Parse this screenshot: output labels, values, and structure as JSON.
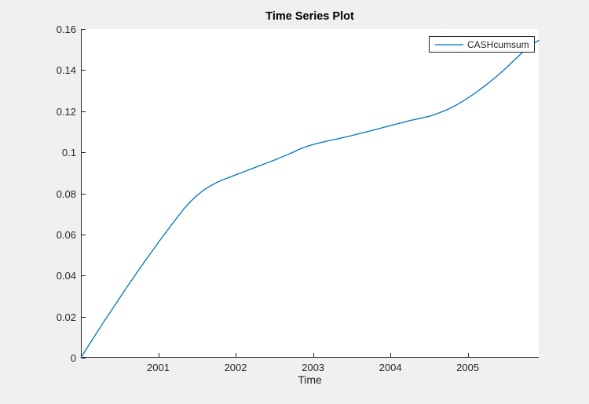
{
  "figure": {
    "background": "#f0f0f0"
  },
  "chart": {
    "title": "Time Series Plot",
    "xlabel": "Time",
    "legend": {
      "label": "CASHcumsum"
    },
    "colors": {
      "line": "#0072BD",
      "axis": "#262626",
      "plot_bg": "#ffffff",
      "figure_bg": "#f0f0f0",
      "title": "#000000"
    }
  },
  "chart_data": {
    "type": "line",
    "title": "Time Series Plot",
    "xlabel": "Time",
    "ylabel": "",
    "legend": [
      "CASHcumsum"
    ],
    "legend_position": "top-right",
    "grid": false,
    "box": false,
    "tick_direction": "in",
    "xlim": [
      2000,
      2005.917
    ],
    "ylim": [
      0,
      0.16
    ],
    "x_ticks": [
      2001,
      2002,
      2003,
      2004,
      2005
    ],
    "x_tick_labels": [
      "2001",
      "2002",
      "2003",
      "2004",
      "2005"
    ],
    "y_ticks": [
      0,
      0.02,
      0.04,
      0.06,
      0.08,
      0.1,
      0.12,
      0.14,
      0.16
    ],
    "y_tick_labels": [
      "0",
      "0.02",
      "0.04",
      "0.06",
      "0.08",
      "0.1",
      "0.12",
      "0.14",
      "0.16"
    ],
    "series": [
      {
        "name": "CASHcumsum",
        "color": "#0072BD",
        "x": [
          2000.0,
          2000.083,
          2000.167,
          2000.25,
          2000.333,
          2000.417,
          2000.5,
          2000.583,
          2000.667,
          2000.75,
          2000.833,
          2000.917,
          2001.0,
          2001.083,
          2001.167,
          2001.25,
          2001.333,
          2001.417,
          2001.5,
          2001.583,
          2001.667,
          2001.75,
          2001.833,
          2001.917,
          2002.0,
          2002.083,
          2002.167,
          2002.25,
          2002.333,
          2002.417,
          2002.5,
          2002.583,
          2002.667,
          2002.75,
          2002.833,
          2002.917,
          2003.0,
          2003.083,
          2003.167,
          2003.25,
          2003.333,
          2003.417,
          2003.5,
          2003.583,
          2003.667,
          2003.75,
          2003.833,
          2003.917,
          2004.0,
          2004.083,
          2004.167,
          2004.25,
          2004.333,
          2004.417,
          2004.5,
          2004.583,
          2004.667,
          2004.75,
          2004.833,
          2004.917,
          2005.0,
          2005.083,
          2005.167,
          2005.25,
          2005.333,
          2005.417,
          2005.5,
          2005.583,
          2005.667,
          2005.75,
          2005.833,
          2005.917
        ],
        "y": [
          0.0,
          0.005,
          0.0099,
          0.0148,
          0.0196,
          0.0243,
          0.029,
          0.0337,
          0.0383,
          0.0428,
          0.0473,
          0.0517,
          0.056,
          0.0603,
          0.0645,
          0.0686,
          0.0725,
          0.076,
          0.079,
          0.0815,
          0.0835,
          0.0852,
          0.0866,
          0.0878,
          0.089,
          0.0902,
          0.0914,
          0.0926,
          0.0938,
          0.095,
          0.0962,
          0.0975,
          0.0988,
          0.1002,
          0.1016,
          0.1028,
          0.1038,
          0.1046,
          0.1053,
          0.106,
          0.1067,
          0.1074,
          0.1081,
          0.1089,
          0.1097,
          0.1105,
          0.1113,
          0.1122,
          0.113,
          0.1138,
          0.1146,
          0.1154,
          0.1161,
          0.1168,
          0.1175,
          0.1185,
          0.1197,
          0.121,
          0.1226,
          0.1244,
          0.1264,
          0.1285,
          0.1308,
          0.1332,
          0.1357,
          0.1384,
          0.1412,
          0.1442,
          0.1472,
          0.1502,
          0.1525,
          0.1545
        ]
      }
    ]
  }
}
